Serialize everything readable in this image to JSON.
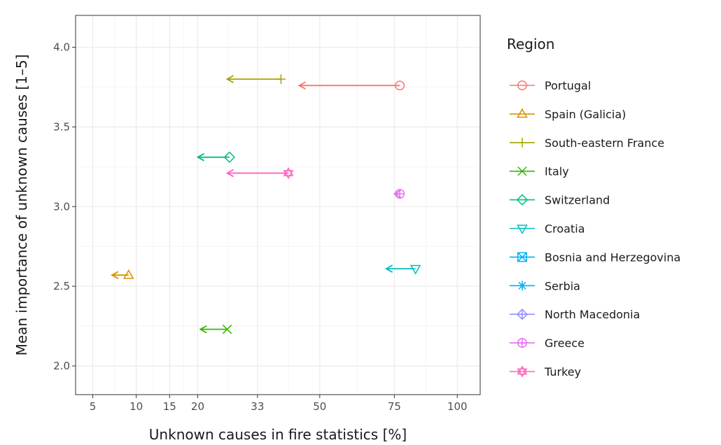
{
  "chart_data": {
    "type": "scatter",
    "xlabel": "Unknown causes in fire statistics [%]",
    "ylabel": "Mean importance of unknown causes [1–5]",
    "x_scale": "sqrt",
    "xlim": [
      3.5,
      110
    ],
    "ylim": [
      1.82,
      4.2
    ],
    "x_ticks": [
      5,
      10,
      15,
      20,
      33,
      50,
      75,
      100
    ],
    "x_tick_labels": [
      "5",
      "10",
      "15",
      "20",
      "33",
      "50",
      "75",
      "100"
    ],
    "y_ticks": [
      2.0,
      2.5,
      3.0,
      3.5,
      4.0
    ],
    "y_tick_labels": [
      "2.0",
      "2.5",
      "3.0",
      "3.5",
      "4.0"
    ],
    "grid": true,
    "legend": {
      "title": "Region",
      "position": "right"
    },
    "series": [
      {
        "name": "Portugal",
        "color": "#F8766D",
        "shape": "circle",
        "x": 77,
        "x_end": 44,
        "y": 3.76
      },
      {
        "name": "Spain (Galicia)",
        "color": "#D89000",
        "shape": "triangle-up",
        "x": 9,
        "x_end": 7,
        "y": 2.57
      },
      {
        "name": "South-eastern France",
        "color": "#A3A500",
        "shape": "plus",
        "x": 39,
        "x_end": 26,
        "y": 3.8
      },
      {
        "name": "Italy",
        "color": "#39B600",
        "shape": "cross",
        "x": 26,
        "x_end": 20.5,
        "y": 2.23
      },
      {
        "name": "Switzerland",
        "color": "#00BF7D",
        "shape": "diamond",
        "x": 26.5,
        "x_end": 20,
        "y": 3.31
      },
      {
        "name": "Croatia",
        "color": "#00BFC4",
        "shape": "triangle-down",
        "x": 83,
        "x_end": 72,
        "y": 2.61
      },
      {
        "name": "Bosnia and Herzegovina",
        "color": "#00B0F6",
        "shape": "square-cross",
        "x": null,
        "x_end": null,
        "y": null
      },
      {
        "name": "Serbia",
        "color": "#00B0F6",
        "shape": "asterisk",
        "x": null,
        "x_end": null,
        "y": null
      },
      {
        "name": "North Macedonia",
        "color": "#9590FF",
        "shape": "diamond-plus",
        "x": null,
        "x_end": null,
        "y": null
      },
      {
        "name": "Greece",
        "color": "#E76BF3",
        "shape": "circle-plus",
        "x": 77,
        "x_end": 75,
        "y": 3.08
      },
      {
        "name": "Turkey",
        "color": "#FF62BC",
        "shape": "star-david",
        "x": 41,
        "x_end": 26,
        "y": 3.21
      }
    ]
  }
}
